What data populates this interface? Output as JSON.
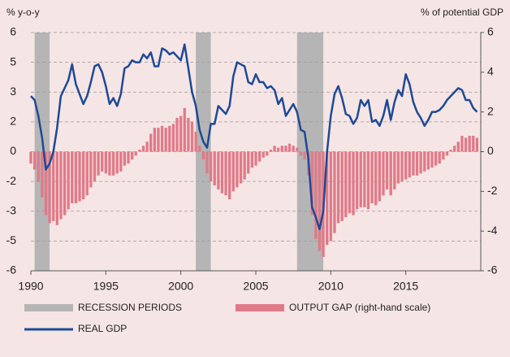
{
  "chart_data": {
    "type": "bar-line",
    "ylabel": "% y-o-y",
    "y2label": "% of potential GDP",
    "xlim": [
      1990,
      2020
    ],
    "xticks": [
      1990,
      1995,
      2000,
      2005,
      2010,
      2015
    ],
    "ylim": [
      -6,
      6
    ],
    "yticks": [
      6,
      {
        "value": 4.5,
        "label": "5"
      },
      3,
      {
        "value": 1.5,
        "label": "2"
      },
      0,
      {
        "value": -1.5,
        "label": "-2"
      },
      -3,
      {
        "value": -4.5,
        "label": "-5"
      },
      -6
    ],
    "y2lim": [
      -6,
      6
    ],
    "y2ticks": [
      6,
      4,
      2,
      0,
      -2,
      -4,
      -6
    ],
    "grid": true,
    "recessions": {
      "name": "RECESSION PERIODS",
      "color": "#b5b5b5",
      "periods": [
        [
          1990.25,
          1991.25
        ],
        [
          2001,
          2002
        ],
        [
          2007.75,
          2009.5
        ]
      ]
    },
    "x": [
      1990,
      1990.25,
      1990.5,
      1990.75,
      1991,
      1991.25,
      1991.5,
      1991.75,
      1992,
      1992.25,
      1992.5,
      1992.75,
      1993,
      1993.25,
      1993.5,
      1993.75,
      1994,
      1994.25,
      1994.5,
      1994.75,
      1995,
      1995.25,
      1995.5,
      1995.75,
      1996,
      1996.25,
      1996.5,
      1996.75,
      1997,
      1997.25,
      1997.5,
      1997.75,
      1998,
      1998.25,
      1998.5,
      1998.75,
      1999,
      1999.25,
      1999.5,
      1999.75,
      2000,
      2000.25,
      2000.5,
      2000.75,
      2001,
      2001.25,
      2001.5,
      2001.75,
      2002,
      2002.25,
      2002.5,
      2002.75,
      2003,
      2003.25,
      2003.5,
      2003.75,
      2004,
      2004.25,
      2004.5,
      2004.75,
      2005,
      2005.25,
      2005.5,
      2005.75,
      2006,
      2006.25,
      2006.5,
      2006.75,
      2007,
      2007.25,
      2007.5,
      2007.75,
      2008,
      2008.25,
      2008.5,
      2008.75,
      2009,
      2009.25,
      2009.5,
      2009.75,
      2010,
      2010.25,
      2010.5,
      2010.75,
      2011,
      2011.25,
      2011.5,
      2011.75,
      2012,
      2012.25,
      2012.5,
      2012.75,
      2013,
      2013.25,
      2013.5,
      2013.75,
      2014,
      2014.25,
      2014.5,
      2014.75,
      2015,
      2015.25,
      2015.5,
      2015.75,
      2016,
      2016.25,
      2016.5,
      2016.75,
      2017,
      2017.25,
      2017.5,
      2017.75,
      2018,
      2018.25,
      2018.5,
      2018.75,
      2019,
      2019.25,
      2019.5,
      2019.75
    ],
    "series": [
      {
        "name": "OUTPUT GAP (right-hand scale)",
        "color": "#e07a88",
        "axis": "y2",
        "kind": "bar",
        "values": [
          -0.6,
          -0.9,
          -1.5,
          -2.3,
          -3.2,
          -3.6,
          -3.5,
          -3.7,
          -3.4,
          -3.2,
          -2.9,
          -2.6,
          -2.6,
          -2.5,
          -2.4,
          -2.2,
          -1.8,
          -1.5,
          -1.2,
          -1.0,
          -1.1,
          -1.2,
          -1.2,
          -1.1,
          -1.0,
          -0.7,
          -0.6,
          -0.4,
          -0.2,
          0.1,
          0.3,
          0.5,
          0.9,
          1.2,
          1.2,
          1.3,
          1.2,
          1.3,
          1.4,
          1.7,
          1.8,
          2.2,
          1.7,
          1.5,
          1.0,
          0.3,
          -0.4,
          -1.1,
          -1.5,
          -1.7,
          -1.9,
          -2.1,
          -2.2,
          -2.4,
          -2.0,
          -1.8,
          -1.6,
          -1.4,
          -1.1,
          -0.8,
          -0.7,
          -0.5,
          -0.3,
          -0.2,
          0.1,
          0.3,
          0.2,
          0.3,
          0.3,
          0.4,
          0.3,
          0.2,
          -0.2,
          -0.4,
          -1.2,
          -3.2,
          -4.4,
          -5.0,
          -5.3,
          -4.7,
          -4.5,
          -4.1,
          -3.6,
          -3.5,
          -3.3,
          -3.1,
          -3.2,
          -2.9,
          -2.8,
          -2.8,
          -2.9,
          -2.6,
          -2.7,
          -2.5,
          -2.2,
          -1.9,
          -2.2,
          -1.9,
          -1.6,
          -1.5,
          -1.4,
          -1.3,
          -1.2,
          -1.2,
          -1.1,
          -1.0,
          -0.9,
          -0.8,
          -0.7,
          -0.6,
          -0.4,
          -0.2,
          0.1,
          0.3,
          0.5,
          0.8,
          0.7,
          0.8,
          0.8,
          0.7
        ]
      },
      {
        "name": "REAL GDP",
        "color": "#1d4a96",
        "kind": "line",
        "values": [
          2.8,
          2.6,
          1.8,
          0.7,
          -0.9,
          -0.6,
          0.0,
          1.2,
          2.8,
          3.2,
          3.6,
          4.4,
          3.4,
          2.9,
          2.4,
          2.8,
          3.5,
          4.3,
          4.4,
          4.0,
          3.3,
          2.4,
          2.7,
          2.3,
          2.9,
          4.2,
          4.3,
          4.6,
          4.5,
          4.5,
          4.9,
          4.7,
          5.0,
          4.3,
          4.3,
          5.2,
          5.1,
          4.9,
          5.0,
          4.8,
          4.6,
          5.4,
          4.2,
          3.0,
          2.3,
          1.1,
          0.5,
          0.2,
          1.4,
          1.4,
          2.3,
          2.1,
          1.9,
          2.3,
          3.8,
          4.5,
          4.4,
          4.3,
          3.5,
          3.4,
          3.9,
          3.5,
          3.5,
          3.2,
          3.3,
          3.1,
          2.4,
          2.7,
          1.8,
          2.1,
          2.4,
          2.0,
          1.1,
          1.0,
          -0.3,
          -2.8,
          -3.3,
          -3.9,
          -3.0,
          0.0,
          1.8,
          2.9,
          3.3,
          2.7,
          1.9,
          1.8,
          1.4,
          1.7,
          2.6,
          2.3,
          2.6,
          1.5,
          1.6,
          1.3,
          1.8,
          2.6,
          1.6,
          2.5,
          3.1,
          2.8,
          3.9,
          3.4,
          2.5,
          2.0,
          1.7,
          1.3,
          1.6,
          2.0,
          2.0,
          2.1,
          2.3,
          2.6,
          2.8,
          3.0,
          3.2,
          3.1,
          2.6,
          2.6,
          2.2,
          2.0
        ]
      }
    ]
  }
}
